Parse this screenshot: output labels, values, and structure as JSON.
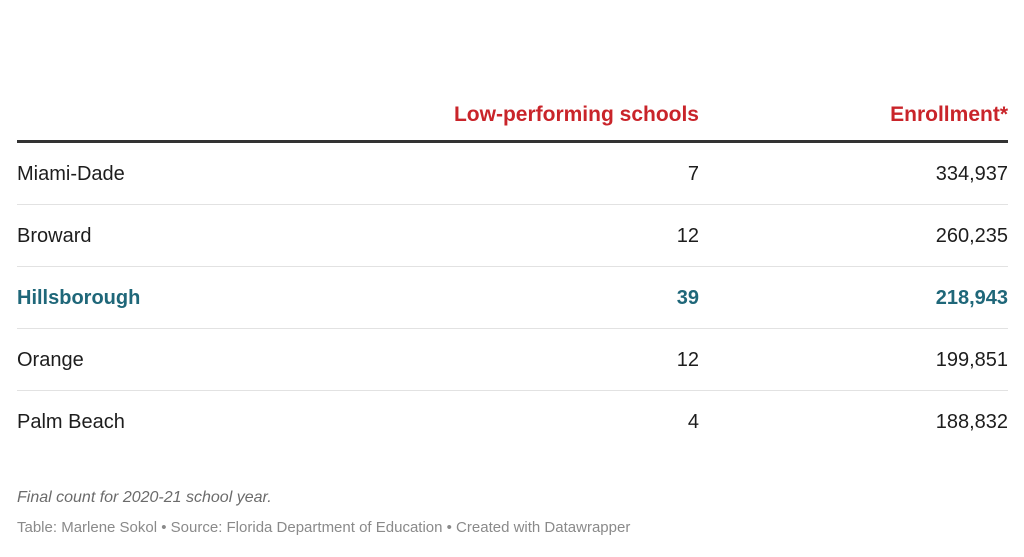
{
  "colors": {
    "header_accent": "#c9242a",
    "highlight": "#1f6779",
    "text": "#1d1d1d"
  },
  "chart_data": {
    "type": "table",
    "columns": [
      "",
      "Low-performing schools",
      "Enrollment*"
    ],
    "rows": [
      {
        "district": "Miami-Dade",
        "schools": "7",
        "enrollment": "334,937",
        "highlight": false
      },
      {
        "district": "Broward",
        "schools": "12",
        "enrollment": "260,235",
        "highlight": false
      },
      {
        "district": "Hillsborough",
        "schools": "39",
        "enrollment": "218,943",
        "highlight": true
      },
      {
        "district": "Orange",
        "schools": "12",
        "enrollment": "199,851",
        "highlight": false
      },
      {
        "district": "Palm Beach",
        "schools": "4",
        "enrollment": "188,832",
        "highlight": false
      }
    ],
    "notes": "Final count for 2020-21 school year.",
    "credits": "Table: Marlene Sokol • Source: Florida Department of Education • Created with Datawrapper"
  }
}
